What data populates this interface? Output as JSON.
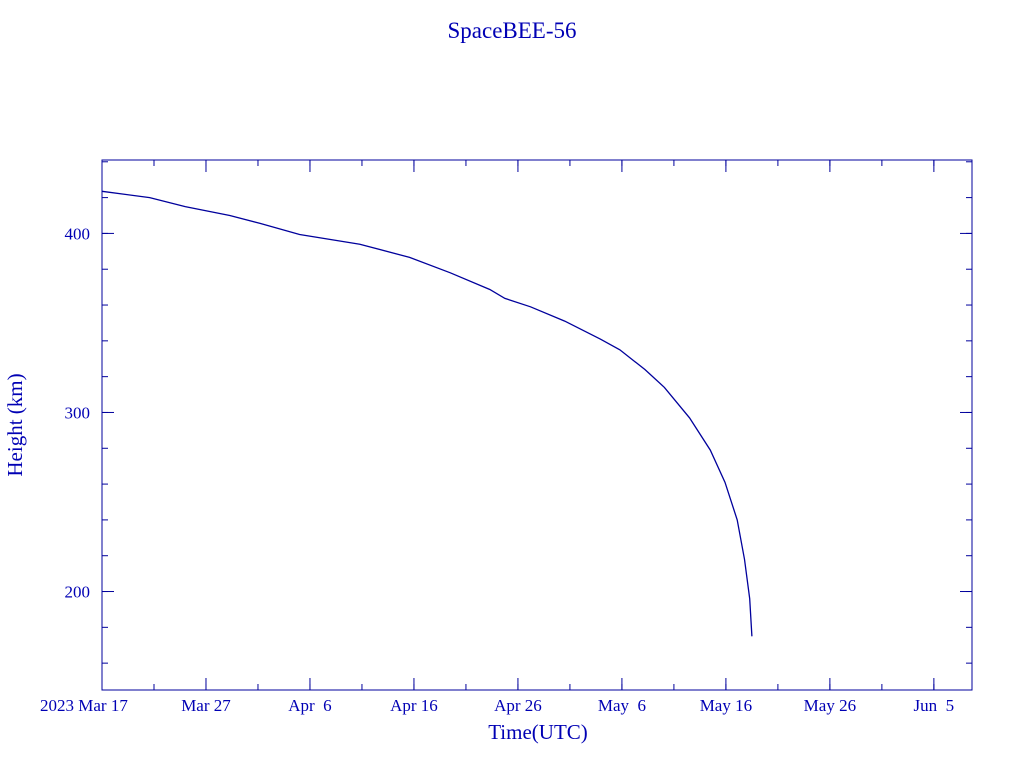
{
  "chart_data": {
    "type": "line",
    "title": "SpaceBEE-56",
    "xlabel": "Time(UTC)",
    "ylabel": "Height (km)",
    "color": "#00009c",
    "text_color": "#0000b4",
    "grid": false,
    "xlim": [
      "2023-03-17T00:00",
      "2023-06-08T16:00"
    ],
    "ylim": [
      145,
      441
    ],
    "x_ticks": [
      {
        "date": "2023-03-17",
        "label": "2023 Mar 17"
      },
      {
        "date": "2023-03-27",
        "label": "Mar 27"
      },
      {
        "date": "2023-04-06",
        "label": "Apr  6"
      },
      {
        "date": "2023-04-16",
        "label": "Apr 16"
      },
      {
        "date": "2023-04-26",
        "label": "Apr 26"
      },
      {
        "date": "2023-05-06",
        "label": "May  6"
      },
      {
        "date": "2023-05-16",
        "label": "May 16"
      },
      {
        "date": "2023-05-26",
        "label": "May 26"
      },
      {
        "date": "2023-06-05",
        "label": "Jun  5"
      }
    ],
    "x_minor_tick_days": 5,
    "y_ticks": [
      200,
      300,
      400
    ],
    "y_minor_tick_step": 20,
    "series": [
      {
        "x": [
          "2023-03-17T00:00",
          "2023-03-21T14:00",
          "2023-03-25T00:00",
          "2023-03-29T07:00",
          "2023-04-01T05:00",
          "2023-04-05T00:00",
          "2023-04-10T19:00",
          "2023-04-15T14:00",
          "2023-04-19T12:00",
          "2023-04-23T07:00",
          "2023-04-24T18:00",
          "2023-04-27T05:00",
          "2023-04-30T12:00",
          "2023-05-03T22:00",
          "2023-05-05T19:00",
          "2023-05-08T05:00",
          "2023-05-10T02:00",
          "2023-05-12T12:00",
          "2023-05-14T12:00",
          "2023-05-15T22:00",
          "2023-05-17T02:00",
          "2023-05-17T19:00",
          "2023-05-18T07:00",
          "2023-05-18T12:00"
        ],
        "y": [
          423.5,
          420,
          415,
          410,
          405.6,
          399.4,
          394,
          386.6,
          378,
          368.7,
          363.7,
          359,
          351,
          341,
          335,
          324,
          314,
          297,
          279,
          261,
          240,
          218,
          196,
          175
        ]
      }
    ]
  }
}
